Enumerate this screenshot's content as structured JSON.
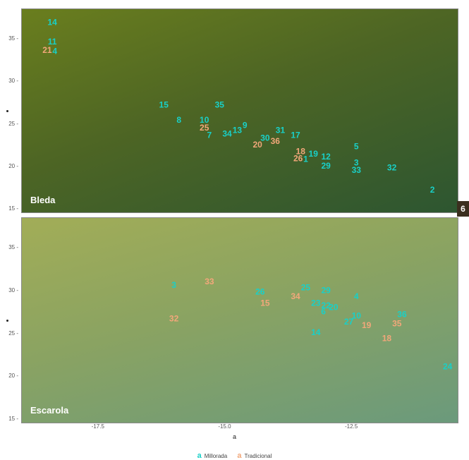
{
  "chart_data": {
    "type": "scatter",
    "xlabel": "a",
    "x_ticks": [
      "-17.5",
      "-15.0",
      "-12.5"
    ],
    "x_tick_values": [
      -17.5,
      -15.0,
      -12.5
    ],
    "xlim": [
      -19.0,
      -10.4
    ],
    "legend": {
      "placement": "bottom",
      "items": [
        {
          "key": "a",
          "name": "Millorada",
          "color": "#19d0c8"
        },
        {
          "key": "a",
          "name": "Tradicional",
          "color": "#f2a77a"
        }
      ]
    },
    "panels": [
      {
        "facet": "Bleda",
        "ylim": [
          14.6,
          38.5
        ],
        "y_ticks": [
          "15",
          "20",
          "25",
          "30",
          "35"
        ],
        "y_tick_values": [
          15,
          20,
          25,
          30,
          35
        ],
        "points": [
          {
            "label": "14",
            "group": "Millorada",
            "x": -18.4,
            "y": 36.9
          },
          {
            "label": "11",
            "group": "Millorada",
            "x": -18.4,
            "y": 34.6
          },
          {
            "label": "21",
            "group": "Tradicional",
            "x": -18.5,
            "y": 33.6
          },
          {
            "label": "4",
            "group": "Millorada",
            "x": -18.35,
            "y": 33.5
          },
          {
            "label": "15",
            "group": "Millorada",
            "x": -16.2,
            "y": 27.2
          },
          {
            "label": "35",
            "group": "Millorada",
            "x": -15.1,
            "y": 27.2
          },
          {
            "label": "8",
            "group": "Millorada",
            "x": -15.9,
            "y": 25.4
          },
          {
            "label": "10",
            "group": "Millorada",
            "x": -15.4,
            "y": 25.4
          },
          {
            "label": "25",
            "group": "Tradicional",
            "x": -15.4,
            "y": 24.5
          },
          {
            "label": "9",
            "group": "Millorada",
            "x": -14.6,
            "y": 24.8
          },
          {
            "label": "13",
            "group": "Millorada",
            "x": -14.75,
            "y": 24.2
          },
          {
            "label": "34",
            "group": "Millorada",
            "x": -14.95,
            "y": 23.8
          },
          {
            "label": "7",
            "group": "Millorada",
            "x": -15.3,
            "y": 23.6
          },
          {
            "label": "31",
            "group": "Millorada",
            "x": -13.9,
            "y": 24.2
          },
          {
            "label": "17",
            "group": "Millorada",
            "x": -13.6,
            "y": 23.6
          },
          {
            "label": "30",
            "group": "Millorada",
            "x": -14.2,
            "y": 23.3
          },
          {
            "label": "36",
            "group": "Tradicional",
            "x": -14.0,
            "y": 22.9
          },
          {
            "label": "20",
            "group": "Tradicional",
            "x": -14.35,
            "y": 22.5
          },
          {
            "label": "5",
            "group": "Millorada",
            "x": -12.4,
            "y": 22.3
          },
          {
            "label": "18",
            "group": "Tradicional",
            "x": -13.5,
            "y": 21.7
          },
          {
            "label": "19",
            "group": "Millorada",
            "x": -13.25,
            "y": 21.4
          },
          {
            "label": "12",
            "group": "Millorada",
            "x": -13.0,
            "y": 21.1
          },
          {
            "label": "26",
            "group": "Tradicional",
            "x": -13.55,
            "y": 20.9
          },
          {
            "label": "1",
            "group": "Millorada",
            "x": -13.4,
            "y": 20.8
          },
          {
            "label": "29",
            "group": "Millorada",
            "x": -13.0,
            "y": 20.0
          },
          {
            "label": "3",
            "group": "Millorada",
            "x": -12.4,
            "y": 20.4
          },
          {
            "label": "33",
            "group": "Millorada",
            "x": -12.4,
            "y": 19.5
          },
          {
            "label": "32",
            "group": "Millorada",
            "x": -11.7,
            "y": 19.8
          },
          {
            "label": "2",
            "group": "Millorada",
            "x": -10.9,
            "y": 17.2
          }
        ]
      },
      {
        "facet": "Escarola",
        "ylim": [
          14.6,
          38.5
        ],
        "y_ticks": [
          "15",
          "20",
          "25",
          "30",
          "35"
        ],
        "y_tick_values": [
          15,
          20,
          25,
          30,
          35
        ],
        "points": [
          {
            "label": "3",
            "group": "Millorada",
            "x": -16.0,
            "y": 30.6
          },
          {
            "label": "33",
            "group": "Tradicional",
            "x": -15.3,
            "y": 31.0
          },
          {
            "label": "32",
            "group": "Tradicional",
            "x": -16.0,
            "y": 26.7
          },
          {
            "label": "26",
            "group": "Millorada",
            "x": -14.3,
            "y": 29.8
          },
          {
            "label": "15",
            "group": "Tradicional",
            "x": -14.2,
            "y": 28.5
          },
          {
            "label": "25",
            "group": "Millorada",
            "x": -13.4,
            "y": 30.3
          },
          {
            "label": "34",
            "group": "Tradicional",
            "x": -13.6,
            "y": 29.3
          },
          {
            "label": "29",
            "group": "Millorada",
            "x": -13.0,
            "y": 30.0
          },
          {
            "label": "4",
            "group": "Millorada",
            "x": -12.4,
            "y": 29.3
          },
          {
            "label": "23",
            "group": "Millorada",
            "x": -13.2,
            "y": 28.5
          },
          {
            "label": "22",
            "group": "Millorada",
            "x": -13.0,
            "y": 28.2
          },
          {
            "label": "20",
            "group": "Millorada",
            "x": -12.85,
            "y": 28.0
          },
          {
            "label": "6",
            "group": "Millorada",
            "x": -13.05,
            "y": 27.5
          },
          {
            "label": "10",
            "group": "Millorada",
            "x": -12.4,
            "y": 27.0
          },
          {
            "label": "27",
            "group": "Millorada",
            "x": -12.55,
            "y": 26.3
          },
          {
            "label": "19",
            "group": "Tradicional",
            "x": -12.2,
            "y": 25.9
          },
          {
            "label": "36",
            "group": "Millorada",
            "x": -11.5,
            "y": 27.2
          },
          {
            "label": "35",
            "group": "Tradicional",
            "x": -11.6,
            "y": 26.1
          },
          {
            "label": "14",
            "group": "Millorada",
            "x": -13.2,
            "y": 25.1
          },
          {
            "label": "18",
            "group": "Tradicional",
            "x": -11.8,
            "y": 24.4
          },
          {
            "label": "24",
            "group": "Millorada",
            "x": -10.6,
            "y": 21.1
          }
        ]
      }
    ],
    "outside_label": {
      "label": "6",
      "group": "Millorada"
    }
  }
}
